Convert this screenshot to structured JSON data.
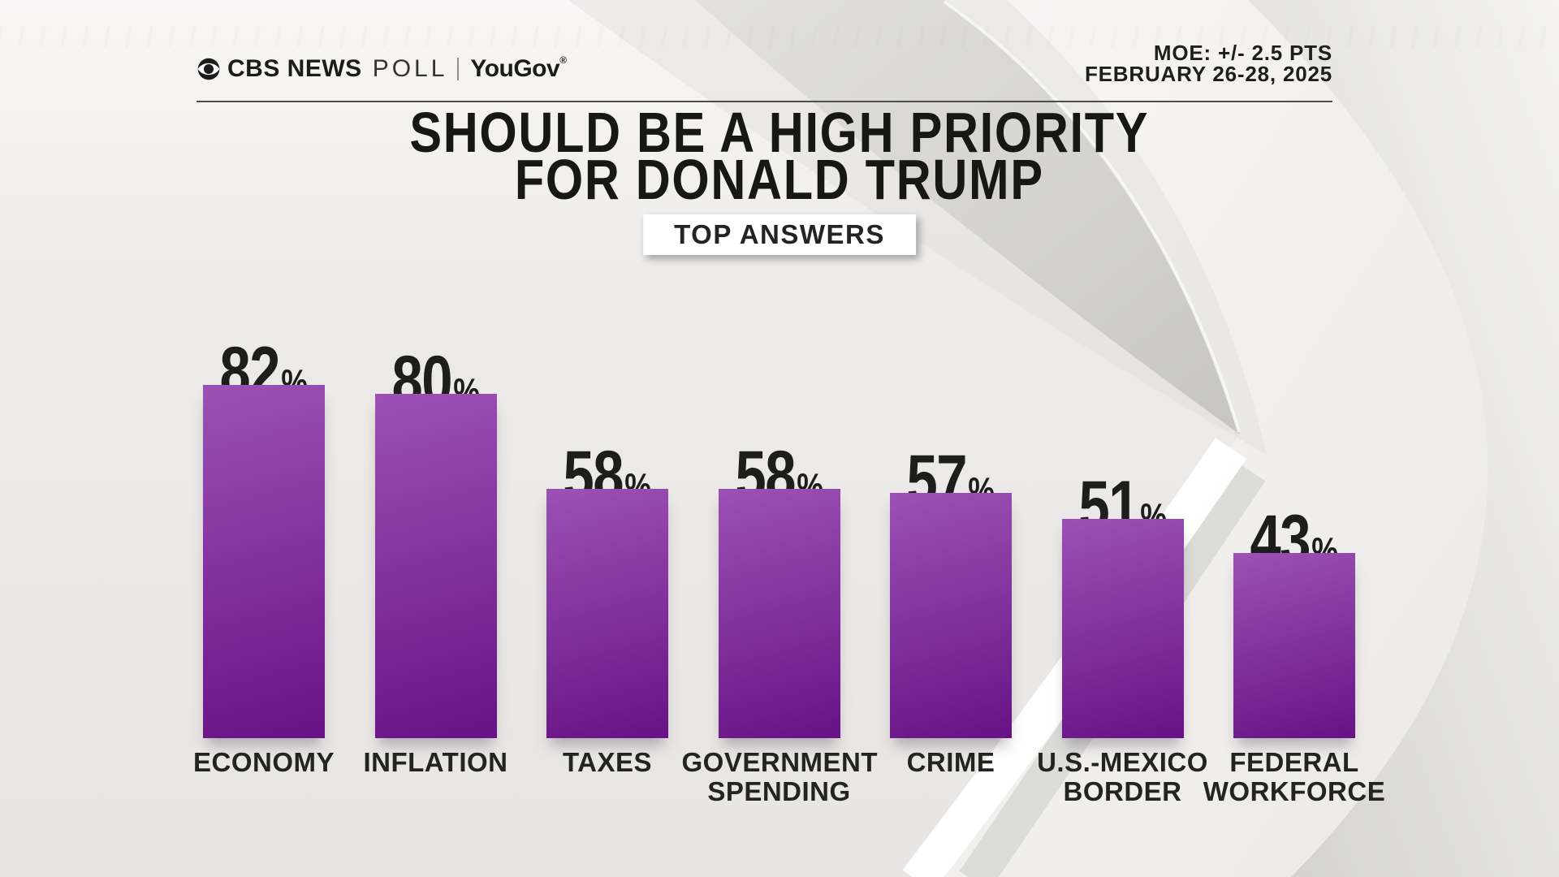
{
  "brand": {
    "cbs_news": "CBS NEWS",
    "poll": "POLL",
    "partner": "YouGov",
    "registered_mark": "®"
  },
  "meta": {
    "moe_line": "MOE: +/- 2.5 PTS",
    "date_line": "FEBRUARY 26-28, 2025"
  },
  "title_line1": "SHOULD BE A HIGH PRIORITY",
  "title_line2": "FOR DONALD TRUMP",
  "badge": "TOP ANSWERS",
  "colors": {
    "bar_top": "#9c51b5",
    "bar_bottom": "#671285",
    "text_dark": "#1d1d1b",
    "background": "#ebe9e7",
    "badge_background": "#ffffff"
  },
  "chart_data": {
    "type": "bar",
    "title": "SHOULD BE A HIGH PRIORITY FOR DONALD TRUMP",
    "subtitle": "TOP ANSWERS",
    "source": "CBS NEWS POLL | YouGov",
    "moe": "+/- 2.5 PTS",
    "dates": "FEBRUARY 26-28, 2025",
    "unit": "%",
    "categories": [
      "ECONOMY",
      "INFLATION",
      "TAXES",
      "GOVERNMENT SPENDING",
      "CRIME",
      "U.S.-MEXICO BORDER",
      "FEDERAL WORKFORCE"
    ],
    "label_lines": [
      [
        "ECONOMY"
      ],
      [
        "INFLATION"
      ],
      [
        "TAXES"
      ],
      [
        "GOVERNMENT",
        "SPENDING"
      ],
      [
        "CRIME"
      ],
      [
        "U.S.-MEXICO",
        "BORDER"
      ],
      [
        "FEDERAL",
        "WORKFORCE"
      ]
    ],
    "values": [
      82,
      80,
      58,
      58,
      57,
      51,
      43
    ],
    "ylim": [
      0,
      100
    ],
    "grid": false,
    "legend": "none",
    "value_labels": "above-bars",
    "bar_color_top": "#9c51b5",
    "bar_color_bottom": "#671285",
    "label_color": "#1d1d1b"
  }
}
